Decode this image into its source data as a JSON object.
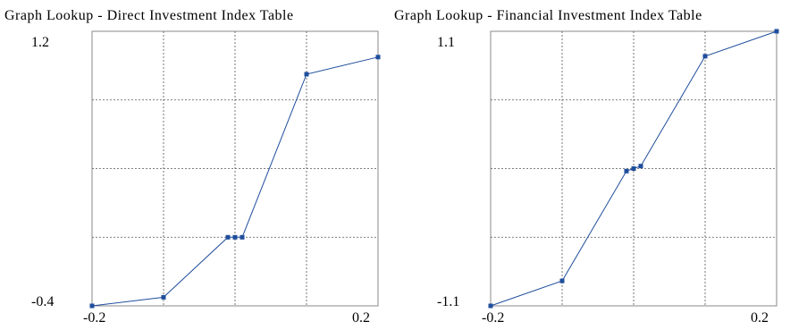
{
  "chart_data": [
    {
      "type": "line",
      "title": "Graph Lookup - Direct Investment Index Table",
      "xlim": [
        -0.2,
        0.2
      ],
      "ylim": [
        -0.4,
        1.2
      ],
      "x_tick_labels": [
        "-0.2",
        "0.2"
      ],
      "y_tick_labels": [
        "1.2",
        "-0.4"
      ],
      "grid": true,
      "series": [
        {
          "x": [
            -0.2,
            -0.1,
            0.0,
            -0.01,
            0.01,
            0.1,
            0.2
          ],
          "y": [
            -0.4,
            -0.35,
            0.0,
            0.0,
            0.0,
            0.95,
            1.05
          ],
          "color": "#1f4e9c"
        }
      ]
    },
    {
      "type": "line",
      "title": "Graph Lookup - Financial Investment Index Table",
      "xlim": [
        -0.2,
        0.2
      ],
      "ylim": [
        -1.1,
        1.1
      ],
      "x_tick_labels": [
        "-0.2",
        "0.2"
      ],
      "y_tick_labels": [
        "1.1",
        "-1.1"
      ],
      "grid": true,
      "series": [
        {
          "x": [
            -0.2,
            -0.1,
            -0.01,
            0.0,
            0.01,
            0.1,
            0.2
          ],
          "y": [
            -1.1,
            -0.9,
            -0.02,
            0.0,
            0.02,
            0.9,
            1.1
          ],
          "color": "#1f4e9c"
        }
      ]
    }
  ]
}
